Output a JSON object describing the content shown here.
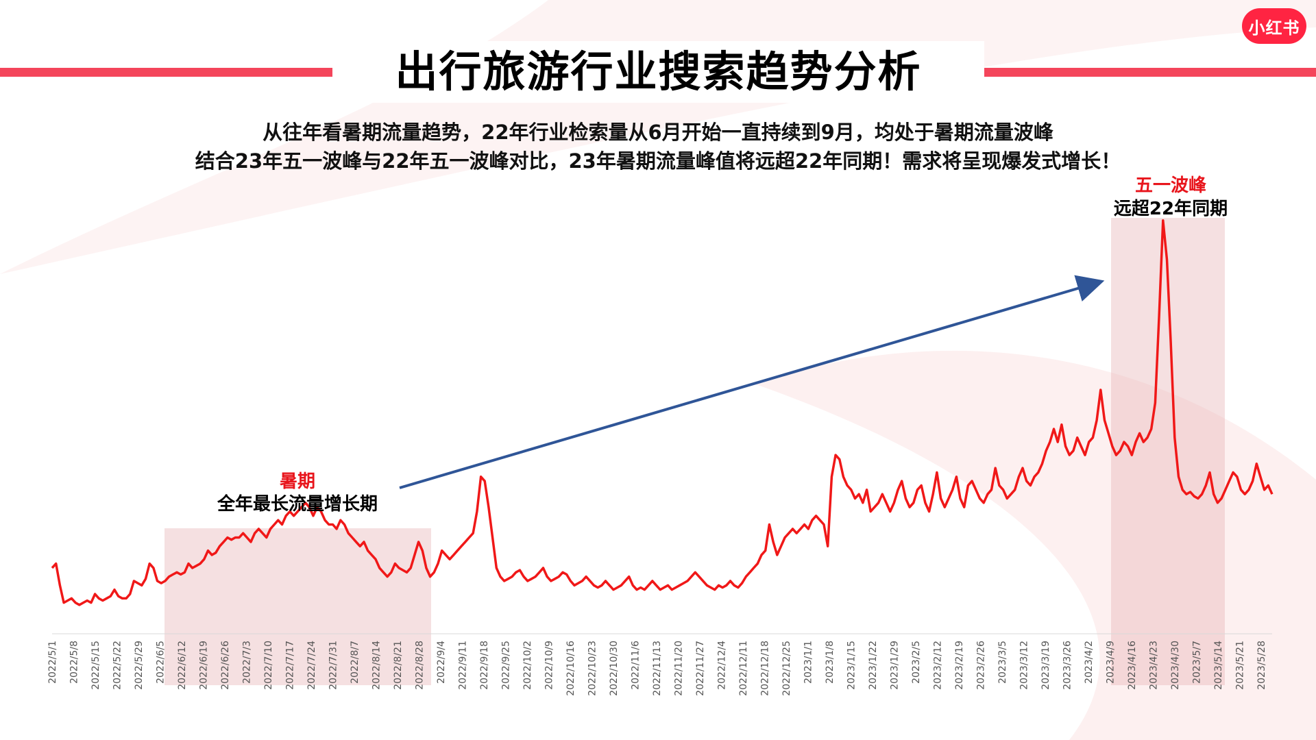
{
  "brand": {
    "logo_text": "小红书",
    "color": "#ff2442"
  },
  "title": "出行旅游行业搜索趋势分析",
  "subtitle_lines": [
    "从往年看暑期流量趋势，22年行业检索量从6月开始一直持续到9月，均处于暑期流量波峰",
    "结合23年五一波峰与22年五一波峰对比，23年暑期流量峰值将远超22年同期！需求将呈现爆发式增长！"
  ],
  "annotations": {
    "summer": {
      "title": "暑期",
      "text": "全年最长流量增长期"
    },
    "mayday": {
      "title": "五一波峰",
      "text": "远超22年同期"
    }
  },
  "chart_data": {
    "type": "line",
    "title": "",
    "xlabel": "",
    "ylabel": "",
    "x_ticks": [
      "2022/5/1",
      "2022/5/8",
      "2022/5/15",
      "2022/5/22",
      "2022/5/29",
      "2022/6/5",
      "2022/6/12",
      "2022/6/19",
      "2022/6/26",
      "2022/7/3",
      "2022/7/10",
      "2022/7/17",
      "2022/7/24",
      "2022/7/31",
      "2022/8/7",
      "2022/8/14",
      "2022/8/21",
      "2022/8/28",
      "2022/9/4",
      "2022/9/11",
      "2022/9/18",
      "2022/9/25",
      "2022/10/2",
      "2022/10/9",
      "2022/10/16",
      "2022/10/23",
      "2022/10/30",
      "2022/11/6",
      "2022/11/13",
      "2022/11/20",
      "2022/11/27",
      "2022/12/4",
      "2022/12/11",
      "2022/12/18",
      "2022/12/25",
      "2023/1/1",
      "2023/1/8",
      "2023/1/15",
      "2023/1/22",
      "2023/1/29",
      "2023/2/5",
      "2023/2/12",
      "2023/2/19",
      "2023/2/26",
      "2023/3/5",
      "2023/3/12",
      "2023/3/19",
      "2023/3/26",
      "2023/4/2",
      "2023/4/9",
      "2023/4/16",
      "2023/4/23",
      "2023/4/30",
      "2023/5/7",
      "2023/5/14",
      "2023/5/21",
      "2023/5/28"
    ],
    "ylim": [
      0,
      100
    ],
    "grid": false,
    "legend": "none",
    "line_color": "#f01818",
    "series": [
      {
        "values": [
          [
            0,
            12
          ],
          [
            1,
            13
          ],
          [
            2,
            8
          ],
          [
            3,
            4
          ],
          [
            4,
            4.5
          ],
          [
            5,
            5
          ],
          [
            6,
            4
          ],
          [
            7,
            3.5
          ],
          [
            8,
            4
          ],
          [
            9,
            4.5
          ],
          [
            10,
            4
          ],
          [
            11,
            6
          ],
          [
            12,
            5
          ],
          [
            13,
            4.5
          ],
          [
            14,
            5
          ],
          [
            15,
            5.5
          ],
          [
            16,
            7
          ],
          [
            17,
            5.5
          ],
          [
            18,
            5
          ],
          [
            19,
            5
          ],
          [
            20,
            6
          ],
          [
            21,
            9
          ],
          [
            22,
            8.5
          ],
          [
            23,
            8
          ],
          [
            24,
            9.5
          ],
          [
            25,
            13
          ],
          [
            26,
            12
          ],
          [
            27,
            9
          ],
          [
            28,
            8.5
          ],
          [
            29,
            9
          ],
          [
            30,
            10
          ],
          [
            31,
            10.5
          ],
          [
            32,
            11
          ],
          [
            33,
            10.5
          ],
          [
            34,
            11
          ],
          [
            35,
            13
          ],
          [
            36,
            12
          ],
          [
            37,
            12.5
          ],
          [
            38,
            13
          ],
          [
            39,
            14
          ],
          [
            40,
            16
          ],
          [
            41,
            15
          ],
          [
            42,
            15.5
          ],
          [
            43,
            17
          ],
          [
            44,
            18
          ],
          [
            45,
            19
          ],
          [
            46,
            18.5
          ],
          [
            47,
            19
          ],
          [
            48,
            19
          ],
          [
            49,
            20
          ],
          [
            50,
            19
          ],
          [
            51,
            18
          ],
          [
            52,
            20
          ],
          [
            53,
            21
          ],
          [
            54,
            20
          ],
          [
            55,
            19
          ],
          [
            56,
            21
          ],
          [
            57,
            22
          ],
          [
            58,
            23
          ],
          [
            59,
            22
          ],
          [
            60,
            24
          ],
          [
            61,
            25
          ],
          [
            62,
            24
          ],
          [
            63,
            25
          ],
          [
            64,
            26
          ],
          [
            65,
            27
          ],
          [
            66,
            26
          ],
          [
            67,
            24
          ],
          [
            68,
            26
          ],
          [
            69,
            25
          ],
          [
            70,
            23
          ],
          [
            71,
            22
          ],
          [
            72,
            22
          ],
          [
            73,
            21
          ],
          [
            74,
            23
          ],
          [
            75,
            22
          ],
          [
            76,
            20
          ],
          [
            77,
            19
          ],
          [
            78,
            18
          ],
          [
            79,
            17
          ],
          [
            80,
            18
          ],
          [
            81,
            16
          ],
          [
            82,
            15
          ],
          [
            83,
            14
          ],
          [
            84,
            12
          ],
          [
            85,
            11
          ],
          [
            86,
            10
          ],
          [
            87,
            11
          ],
          [
            88,
            13
          ],
          [
            89,
            12
          ],
          [
            90,
            11.5
          ],
          [
            91,
            11
          ],
          [
            92,
            12
          ],
          [
            93,
            15
          ],
          [
            94,
            18
          ],
          [
            95,
            16
          ],
          [
            96,
            12
          ],
          [
            97,
            10
          ],
          [
            98,
            11
          ],
          [
            99,
            13
          ],
          [
            100,
            16
          ],
          [
            101,
            15
          ],
          [
            102,
            14
          ],
          [
            103,
            15
          ],
          [
            104,
            16
          ],
          [
            105,
            17
          ],
          [
            106,
            18
          ],
          [
            107,
            19
          ],
          [
            108,
            20
          ],
          [
            109,
            25
          ],
          [
            110,
            33
          ],
          [
            111,
            32
          ],
          [
            112,
            26
          ],
          [
            113,
            19
          ],
          [
            114,
            12
          ],
          [
            115,
            10
          ],
          [
            116,
            9
          ],
          [
            117,
            9.5
          ],
          [
            118,
            10
          ],
          [
            119,
            11
          ],
          [
            120,
            11.5
          ],
          [
            121,
            10
          ],
          [
            122,
            9
          ],
          [
            123,
            9.5
          ],
          [
            124,
            10
          ],
          [
            125,
            11
          ],
          [
            126,
            12
          ],
          [
            127,
            10
          ],
          [
            128,
            9
          ],
          [
            129,
            9.5
          ],
          [
            130,
            10
          ],
          [
            131,
            11
          ],
          [
            132,
            10.5
          ],
          [
            133,
            9
          ],
          [
            134,
            8
          ],
          [
            135,
            8.5
          ],
          [
            136,
            9
          ],
          [
            137,
            10
          ],
          [
            138,
            9
          ],
          [
            139,
            8
          ],
          [
            140,
            7.5
          ],
          [
            141,
            8
          ],
          [
            142,
            9
          ],
          [
            143,
            8
          ],
          [
            144,
            7
          ],
          [
            145,
            7.5
          ],
          [
            146,
            8
          ],
          [
            147,
            9
          ],
          [
            148,
            10
          ],
          [
            149,
            8
          ],
          [
            150,
            7
          ],
          [
            151,
            7.5
          ],
          [
            152,
            7
          ],
          [
            153,
            8
          ],
          [
            154,
            9
          ],
          [
            155,
            8
          ],
          [
            156,
            7
          ],
          [
            157,
            7.5
          ],
          [
            158,
            8
          ],
          [
            159,
            7
          ],
          [
            160,
            7.5
          ],
          [
            161,
            8
          ],
          [
            162,
            8.5
          ],
          [
            163,
            9
          ],
          [
            164,
            10
          ],
          [
            165,
            11
          ],
          [
            166,
            10
          ],
          [
            167,
            9
          ],
          [
            168,
            8
          ],
          [
            169,
            7.5
          ],
          [
            170,
            7
          ],
          [
            171,
            8
          ],
          [
            172,
            7.5
          ],
          [
            173,
            8
          ],
          [
            174,
            9
          ],
          [
            175,
            8
          ],
          [
            176,
            7.5
          ],
          [
            177,
            8.5
          ],
          [
            178,
            10
          ],
          [
            179,
            11
          ],
          [
            180,
            12
          ],
          [
            181,
            13
          ],
          [
            182,
            15
          ],
          [
            183,
            16
          ],
          [
            184,
            22
          ],
          [
            185,
            18
          ],
          [
            186,
            15
          ],
          [
            187,
            17
          ],
          [
            188,
            19
          ],
          [
            189,
            20
          ],
          [
            190,
            21
          ],
          [
            191,
            20
          ],
          [
            192,
            21
          ],
          [
            193,
            22
          ],
          [
            194,
            21
          ],
          [
            195,
            23
          ],
          [
            196,
            24
          ],
          [
            197,
            23
          ],
          [
            198,
            22
          ],
          [
            199,
            17
          ],
          [
            200,
            33
          ],
          [
            201,
            38
          ],
          [
            202,
            37
          ],
          [
            203,
            33
          ],
          [
            204,
            31
          ],
          [
            205,
            30
          ],
          [
            206,
            28
          ],
          [
            207,
            29
          ],
          [
            208,
            27
          ],
          [
            209,
            30
          ],
          [
            210,
            25
          ],
          [
            211,
            26
          ],
          [
            212,
            27
          ],
          [
            213,
            29
          ],
          [
            214,
            27
          ],
          [
            215,
            25
          ],
          [
            216,
            27
          ],
          [
            217,
            30
          ],
          [
            218,
            32
          ],
          [
            219,
            28
          ],
          [
            220,
            26
          ],
          [
            221,
            27
          ],
          [
            222,
            30
          ],
          [
            223,
            31
          ],
          [
            224,
            27
          ],
          [
            225,
            25
          ],
          [
            226,
            29
          ],
          [
            227,
            34
          ],
          [
            228,
            28
          ],
          [
            229,
            26
          ],
          [
            230,
            28
          ],
          [
            231,
            30
          ],
          [
            232,
            33
          ],
          [
            233,
            28
          ],
          [
            234,
            26
          ],
          [
            235,
            31
          ],
          [
            236,
            32
          ],
          [
            237,
            30
          ],
          [
            238,
            28
          ],
          [
            239,
            27
          ],
          [
            240,
            29
          ],
          [
            241,
            30
          ],
          [
            242,
            35
          ],
          [
            243,
            31
          ],
          [
            244,
            30
          ],
          [
            245,
            28
          ],
          [
            246,
            29
          ],
          [
            247,
            30
          ],
          [
            248,
            33
          ],
          [
            249,
            35
          ],
          [
            250,
            32
          ],
          [
            251,
            31
          ],
          [
            252,
            33
          ],
          [
            253,
            34
          ],
          [
            254,
            36
          ],
          [
            255,
            39
          ],
          [
            256,
            41
          ],
          [
            257,
            44
          ],
          [
            258,
            41
          ],
          [
            259,
            45
          ],
          [
            260,
            40
          ],
          [
            261,
            38
          ],
          [
            262,
            39
          ],
          [
            263,
            42
          ],
          [
            264,
            40
          ],
          [
            265,
            38
          ],
          [
            266,
            41
          ],
          [
            267,
            42
          ],
          [
            268,
            46
          ],
          [
            269,
            53
          ],
          [
            270,
            46
          ],
          [
            271,
            43
          ],
          [
            272,
            40
          ],
          [
            273,
            38
          ],
          [
            274,
            39
          ],
          [
            275,
            41
          ],
          [
            276,
            40
          ],
          [
            277,
            38
          ],
          [
            278,
            41
          ],
          [
            279,
            43
          ],
          [
            280,
            41
          ],
          [
            281,
            42
          ],
          [
            282,
            44
          ],
          [
            283,
            50
          ],
          [
            284,
            70
          ],
          [
            285,
            92
          ],
          [
            286,
            83
          ],
          [
            287,
            64
          ],
          [
            288,
            42
          ],
          [
            289,
            33
          ],
          [
            290,
            30
          ],
          [
            291,
            29
          ],
          [
            292,
            29.5
          ],
          [
            293,
            28.5
          ],
          [
            294,
            28
          ],
          [
            295,
            29
          ],
          [
            296,
            31
          ],
          [
            297,
            34
          ],
          [
            298,
            29
          ],
          [
            299,
            27
          ],
          [
            300,
            28
          ],
          [
            301,
            30
          ],
          [
            302,
            32
          ],
          [
            303,
            34
          ],
          [
            304,
            33
          ],
          [
            305,
            30
          ],
          [
            306,
            29
          ],
          [
            307,
            30
          ],
          [
            308,
            32
          ],
          [
            309,
            36
          ],
          [
            310,
            33
          ],
          [
            311,
            30
          ],
          [
            312,
            31
          ],
          [
            313,
            29
          ]
        ]
      }
    ]
  }
}
